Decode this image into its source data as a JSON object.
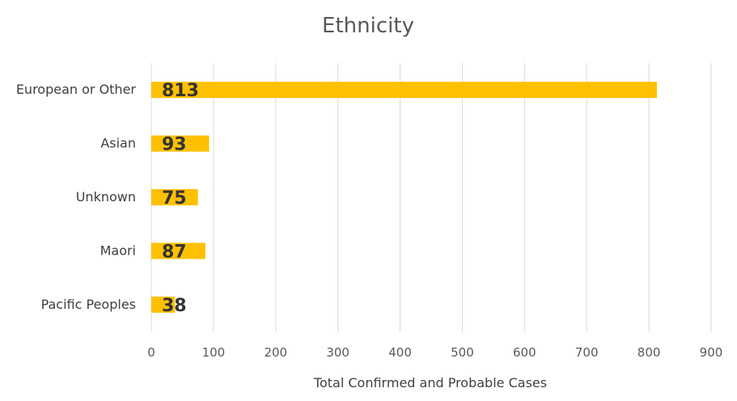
{
  "chart_data": {
    "type": "bar",
    "orientation": "horizontal",
    "title": "Ethnicity",
    "xlabel": "Total Confirmed and Probable Cases",
    "ylabel": "",
    "categories": [
      "European or Other",
      "Asian",
      "Unknown",
      "Maori",
      "Pacific Peoples"
    ],
    "values": [
      813,
      93,
      75,
      87,
      38
    ],
    "xlim": [
      0,
      900
    ],
    "xticks": [
      0,
      100,
      200,
      300,
      400,
      500,
      600,
      700,
      800,
      900
    ],
    "grid": true,
    "legend": "none",
    "bar_color": "#FFC000",
    "data_labels": true
  }
}
